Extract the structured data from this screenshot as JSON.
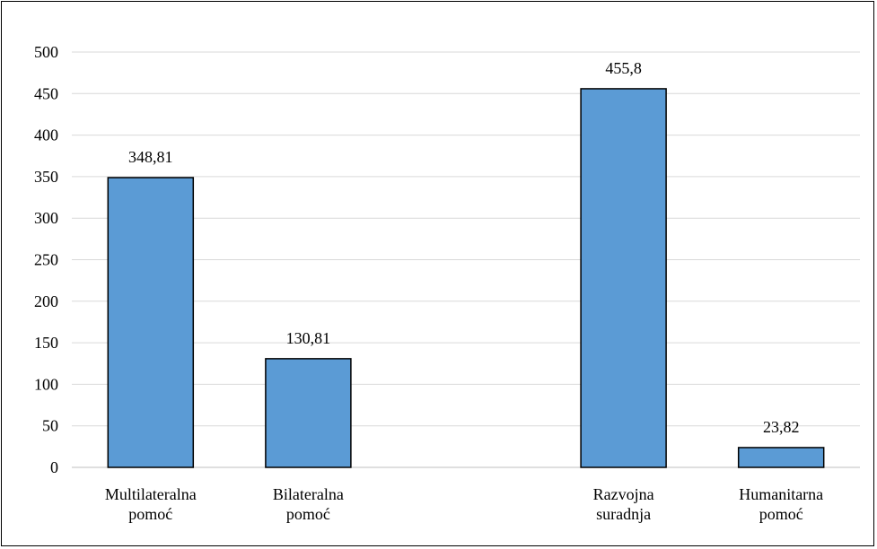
{
  "chart_data": {
    "type": "bar",
    "title": "",
    "xlabel": "",
    "ylabel": "",
    "ylim": [
      0,
      500
    ],
    "yticks": [
      0,
      50,
      100,
      150,
      200,
      250,
      300,
      350,
      400,
      450,
      500
    ],
    "grid": true,
    "categories": [
      [
        "Multilateralna",
        "pomoć"
      ],
      [
        "Bilateralna",
        "pomoć"
      ],
      [
        "Razvojna",
        "suradnja"
      ],
      [
        "Humanitarna",
        "pomoć"
      ]
    ],
    "category_slots": [
      0,
      1,
      3,
      4
    ],
    "values": [
      348.81,
      130.81,
      455.8,
      23.82
    ],
    "value_labels": [
      "348,81",
      "130,81",
      "455,8",
      "23,82"
    ],
    "colors": {
      "bar": "#5b9bd5",
      "bar_edge": "#000000",
      "grid": "#d9d9d9"
    }
  }
}
